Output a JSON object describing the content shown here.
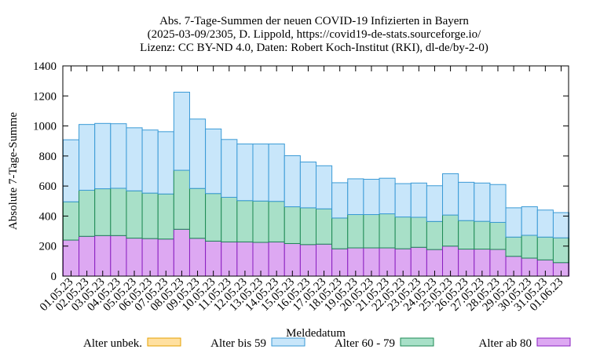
{
  "chart_data": {
    "type": "bar",
    "stacked": true,
    "title": [
      "Abs. 7-Tage-Summen der neuen COVID-19 Infizierten in Bayern",
      "(2025-03-09/2305, D. Lippold, https://covid19-de-stats.sourceforge.io/",
      "Lizenz: CC BY-ND 4.0, Daten: Robert Koch-Institut (RKI), dl-de/by-2-0)"
    ],
    "xlabel": "Meldedatum",
    "ylabel": "Absolute 7-Tage-Summe",
    "ylim": [
      0,
      1400
    ],
    "yticks": [
      0,
      200,
      400,
      600,
      800,
      1000,
      1200,
      1400
    ],
    "categories": [
      "01.05.23",
      "02.05.23",
      "03.05.23",
      "04.05.23",
      "05.05.23",
      "06.05.23",
      "07.05.23",
      "08.05.23",
      "09.05.23",
      "10.05.23",
      "11.05.23",
      "12.05.23",
      "13.05.23",
      "14.05.23",
      "15.05.23",
      "16.05.23",
      "17.05.23",
      "18.05.23",
      "19.05.23",
      "20.05.23",
      "21.05.23",
      "22.05.23",
      "23.05.23",
      "24.05.23",
      "25.05.23",
      "26.05.23",
      "27.05.23",
      "28.05.23",
      "29.05.23",
      "30.05.23",
      "31.05.23",
      "01.06.23"
    ],
    "series": [
      {
        "name": "Alter unbek.",
        "color": "#ffe0a0",
        "stroke": "#e6a000",
        "values": [
          0,
          0,
          0,
          0,
          0,
          0,
          0,
          0,
          0,
          0,
          0,
          0,
          0,
          0,
          0,
          0,
          0,
          0,
          0,
          0,
          0,
          0,
          0,
          0,
          0,
          0,
          0,
          0,
          0,
          0,
          0,
          0
        ]
      },
      {
        "name": "Alter ab 80",
        "color": "#dda8f2",
        "stroke": "#8a1fc0",
        "values": [
          240,
          265,
          270,
          270,
          253,
          250,
          247,
          312,
          252,
          233,
          228,
          228,
          225,
          228,
          217,
          210,
          213,
          182,
          188,
          188,
          188,
          182,
          192,
          177,
          200,
          180,
          180,
          178,
          132,
          120,
          108,
          90
        ]
      },
      {
        "name": "Alter 60 - 79",
        "color": "#a8e0c8",
        "stroke": "#1e8a55",
        "values": [
          255,
          307,
          312,
          315,
          315,
          303,
          300,
          393,
          332,
          317,
          297,
          275,
          275,
          270,
          245,
          245,
          235,
          205,
          222,
          222,
          227,
          212,
          200,
          187,
          207,
          190,
          185,
          180,
          128,
          152,
          152,
          165
        ]
      },
      {
        "name": "Alter bis 59",
        "color": "#c8e6fa",
        "stroke": "#3a9ad6",
        "values": [
          413,
          438,
          435,
          430,
          420,
          420,
          415,
          520,
          462,
          430,
          385,
          377,
          380,
          382,
          340,
          305,
          287,
          235,
          238,
          235,
          237,
          222,
          228,
          238,
          275,
          255,
          255,
          252,
          195,
          190,
          180,
          168
        ]
      }
    ],
    "legend": [
      "Alter unbek.",
      "Alter bis 59",
      "Alter 60 - 79",
      "Alter ab 80"
    ],
    "legend_position": "bottom",
    "grid": false
  }
}
